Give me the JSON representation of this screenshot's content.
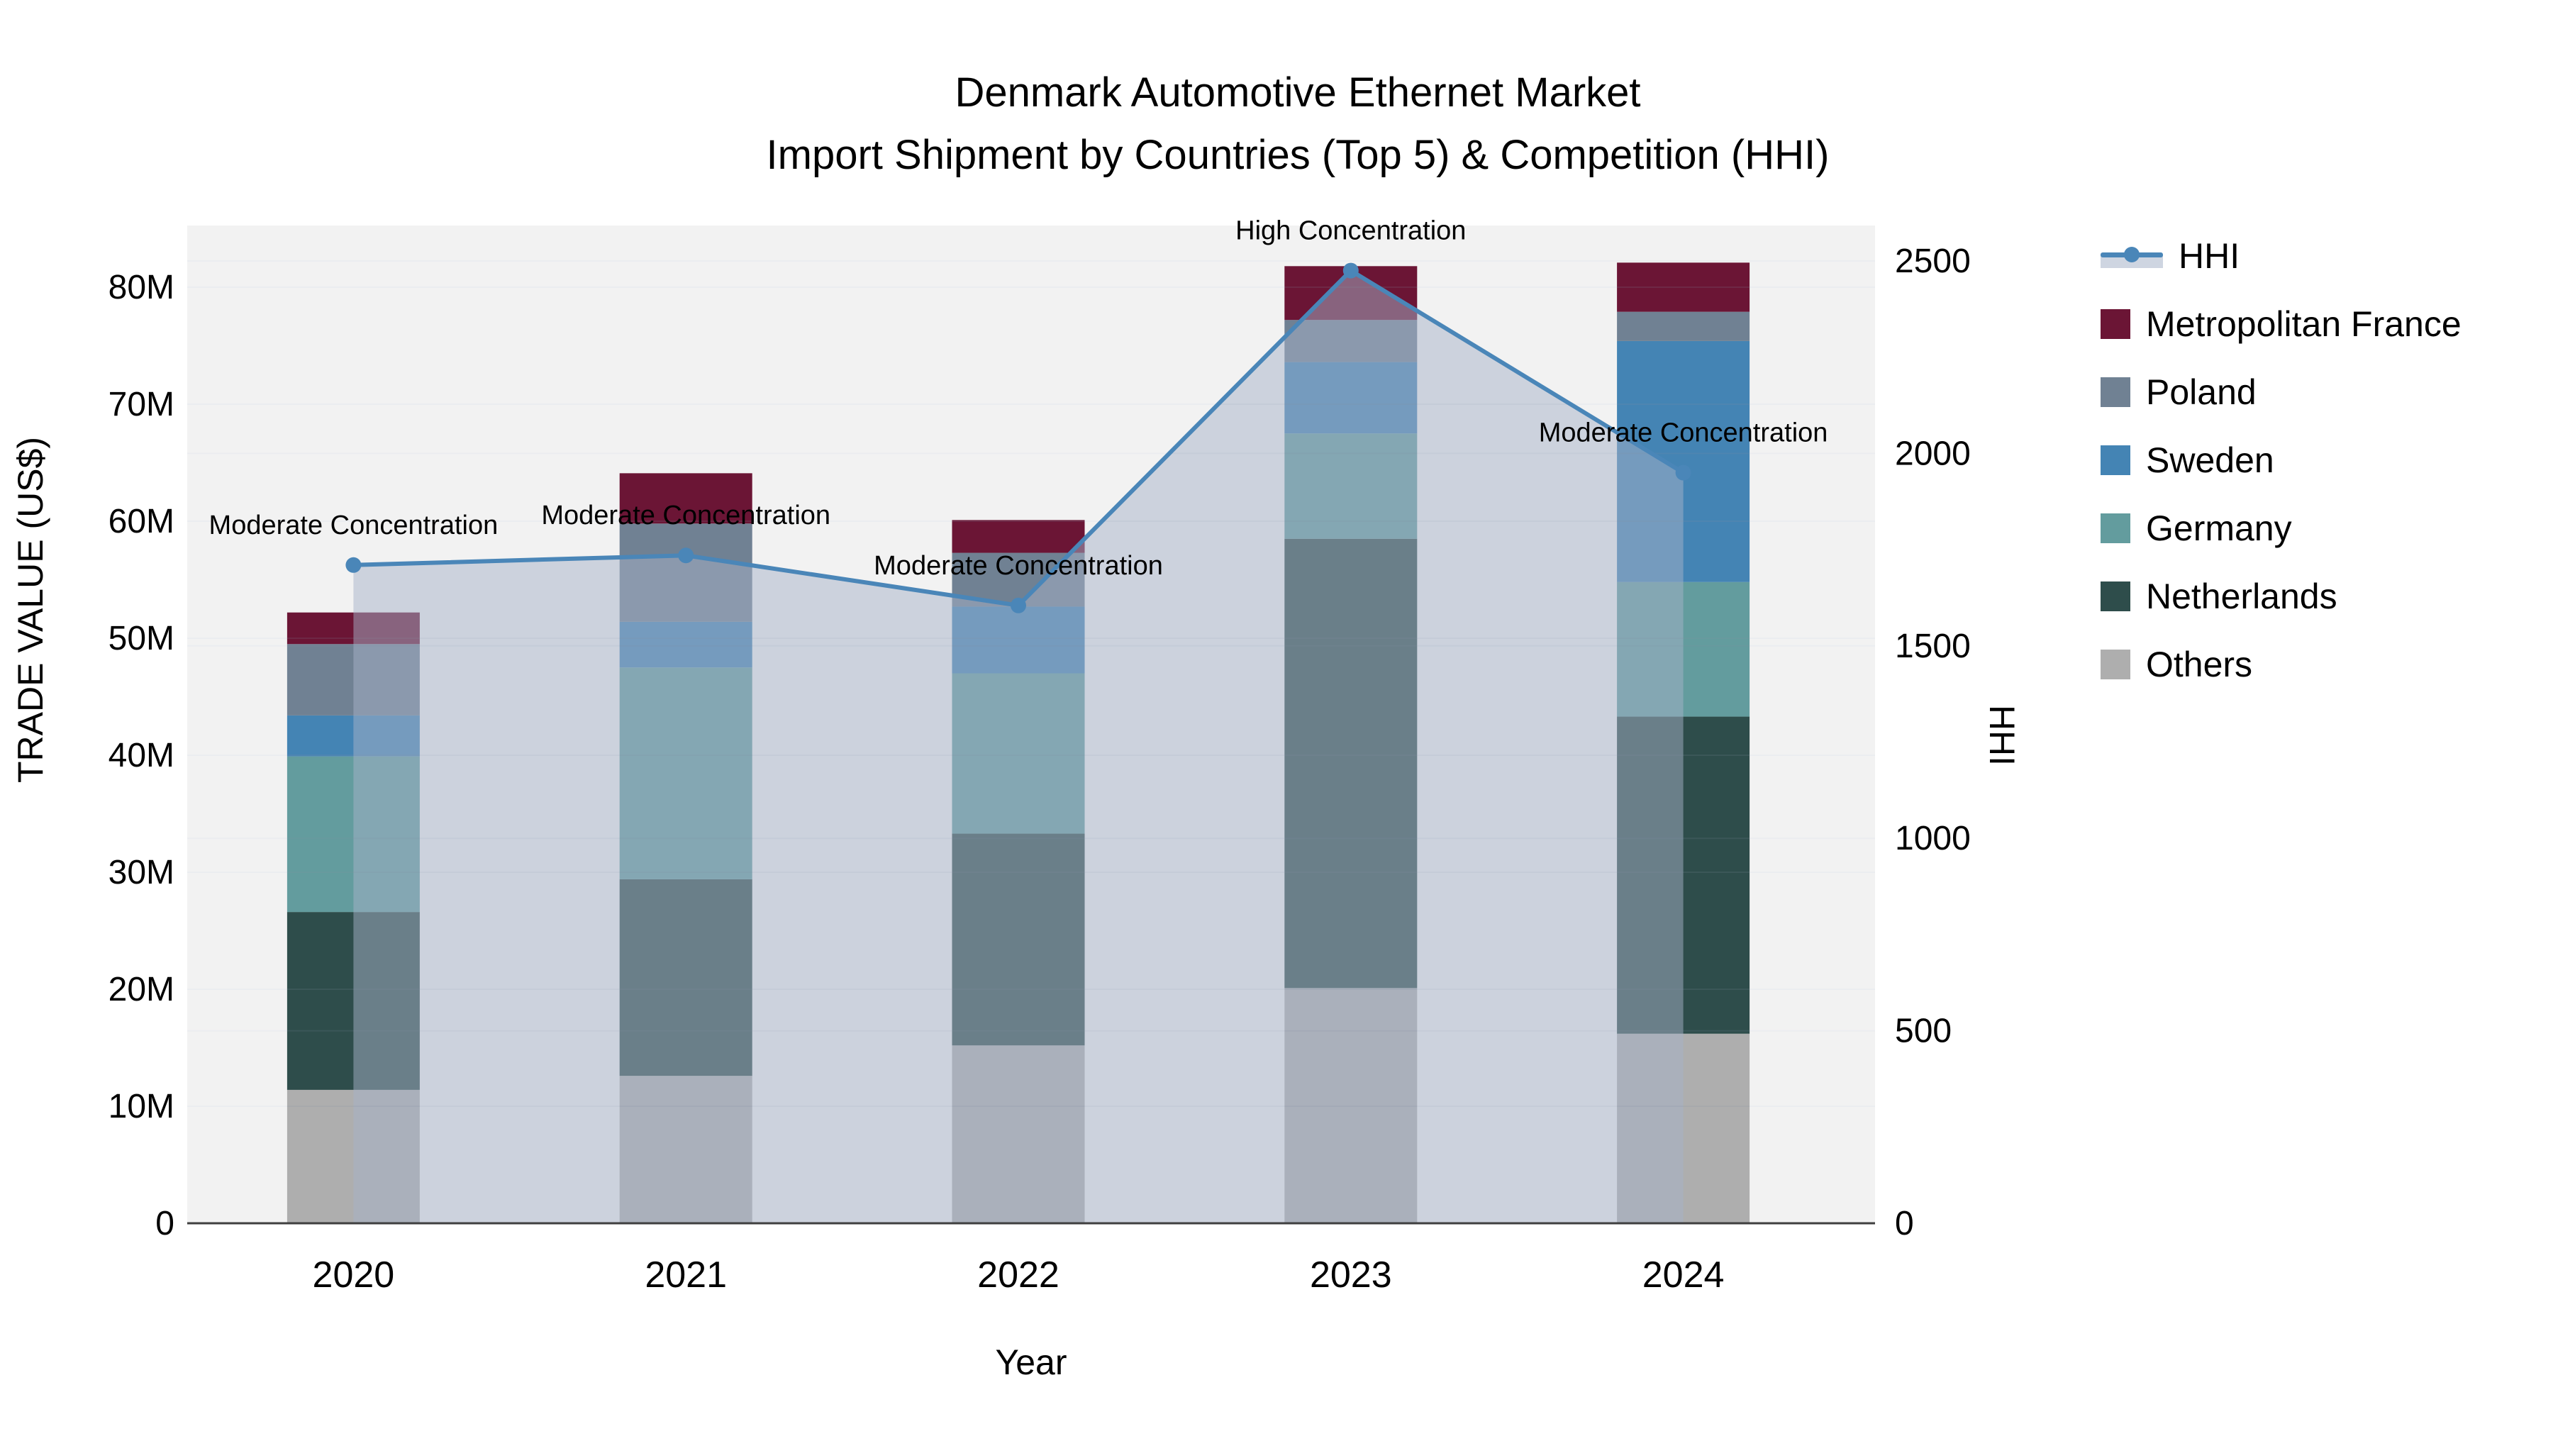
{
  "title": {
    "line1": "Denmark Automotive Ethernet Market",
    "line2": "Import Shipment by Countries (Top 5) & Competition (HHI)"
  },
  "axis_titles": {
    "x": "Year",
    "y_left": "TRADE VALUE (US$)",
    "y_right": "HHI"
  },
  "left_ticks": [
    "0",
    "10M",
    "20M",
    "30M",
    "40M",
    "50M",
    "60M",
    "70M",
    "80M"
  ],
  "right_ticks": [
    "0",
    "500",
    "1000",
    "1500",
    "2000",
    "2500"
  ],
  "years": [
    "2020",
    "2021",
    "2022",
    "2023",
    "2024"
  ],
  "legend": {
    "items": [
      {
        "label": "HHI",
        "type": "line"
      },
      {
        "label": "Metropolitan France",
        "type": "box",
        "color": "#6b1535"
      },
      {
        "label": "Poland",
        "type": "box",
        "color": "#708193"
      },
      {
        "label": "Sweden",
        "type": "box",
        "color": "#4484b4"
      },
      {
        "label": "Germany",
        "type": "box",
        "color": "#639c9e"
      },
      {
        "label": "Netherlands",
        "type": "box",
        "color": "#2e4d4b"
      },
      {
        "label": "Others",
        "type": "box",
        "color": "#aeaeae"
      }
    ]
  },
  "annotations": [
    {
      "year": "2020",
      "text": "Moderate Concentration"
    },
    {
      "year": "2021",
      "text": "Moderate Concentration"
    },
    {
      "year": "2022",
      "text": "Moderate Concentration"
    },
    {
      "year": "2023",
      "text": "High Concentration"
    },
    {
      "year": "2024",
      "text": "Moderate Concentration"
    }
  ],
  "chart_data": {
    "type": "bar",
    "subtype": "stacked-with-line-overlay",
    "title": "Denmark Automotive Ethernet Market — Import Shipment by Countries (Top 5) & Competition (HHI)",
    "xlabel": "Year",
    "ylabel_left": "TRADE VALUE (US$)",
    "ylabel_right": "HHI",
    "categories": [
      "2020",
      "2021",
      "2022",
      "2023",
      "2024"
    ],
    "unit": "millions USD",
    "ylim_left": [
      0,
      84.5
    ],
    "ylim_right": [
      0,
      2570
    ],
    "grid": true,
    "legend_position": "right",
    "series": [
      {
        "name": "Others",
        "values": [
          11.4,
          12.6,
          15.2,
          20.1,
          16.2
        ]
      },
      {
        "name": "Netherlands",
        "values": [
          15.2,
          16.8,
          18.1,
          38.4,
          27.1
        ]
      },
      {
        "name": "Germany",
        "values": [
          13.3,
          18.1,
          13.7,
          9.0,
          11.5
        ]
      },
      {
        "name": "Sweden",
        "values": [
          3.5,
          3.9,
          5.7,
          6.1,
          20.6
        ]
      },
      {
        "name": "Poland",
        "values": [
          6.1,
          8.4,
          4.6,
          3.6,
          2.5
        ]
      },
      {
        "name": "Metropolitan France",
        "values": [
          2.7,
          4.3,
          2.8,
          4.6,
          4.2
        ]
      }
    ],
    "bar_totals": [
      52.2,
      64.1,
      60.1,
      81.8,
      82.1
    ],
    "line_series": {
      "name": "HHI",
      "values": [
        1710,
        1735,
        1605,
        2475,
        1950
      ],
      "area_fill": true
    }
  },
  "colors": {
    "Metropolitan France": "#6b1535",
    "Poland": "#708193",
    "Sweden": "#4484b4",
    "Germany": "#639c9e",
    "Netherlands": "#2e4d4b",
    "Others": "#aeaeae",
    "hhi_line": "#4a86b8",
    "hhi_area": "rgba(166,178,200,0.5)",
    "plot_bg": "#f2f2f2",
    "axis_line": "#3f3f3f",
    "text": "#000000"
  }
}
